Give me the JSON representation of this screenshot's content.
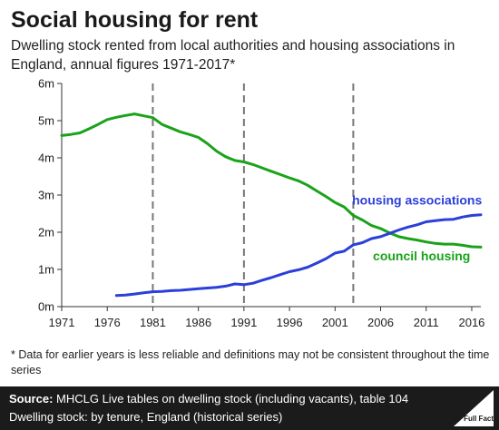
{
  "header": {
    "title": "Social housing for rent",
    "subtitle": "Dwelling stock rented from local authorities and housing associations in England, annual figures 1971-2017*"
  },
  "footnote": "* Data for earlier years is less reliable and definitions may not be consistent throughout the time series",
  "footer": {
    "source_label": "Source:",
    "source_text": " MHCLG Live tables on dwelling stock (including vacants), table 104",
    "line2": "Dwelling stock: by tenure, England (historical series)",
    "logo_text": "Full Fact"
  },
  "chart_data": {
    "type": "line",
    "xlim": [
      1971,
      2017
    ],
    "ylim": [
      0,
      6
    ],
    "x_ticks": [
      "1971",
      "1976",
      "1981",
      "1986",
      "1991",
      "1996",
      "2001",
      "2006",
      "2011",
      "2016"
    ],
    "x_tick_values": [
      1971,
      1976,
      1981,
      1986,
      1991,
      1996,
      2001,
      2006,
      2011,
      2016
    ],
    "y_ticks": [
      "0m",
      "1m",
      "2m",
      "3m",
      "4m",
      "5m",
      "6m"
    ],
    "y_tick_values": [
      0,
      1,
      2,
      3,
      4,
      5,
      6
    ],
    "reference_lines_x": [
      1981,
      1991,
      2003
    ],
    "grid": false,
    "series": [
      {
        "name": "council housing",
        "color": "#1aa31a",
        "points": [
          [
            1971,
            4.6
          ],
          [
            1972,
            4.63
          ],
          [
            1973,
            4.67
          ],
          [
            1974,
            4.78
          ],
          [
            1975,
            4.9
          ],
          [
            1976,
            5.03
          ],
          [
            1977,
            5.09
          ],
          [
            1978,
            5.14
          ],
          [
            1979,
            5.18
          ],
          [
            1980,
            5.13
          ],
          [
            1981,
            5.08
          ],
          [
            1982,
            4.9
          ],
          [
            1983,
            4.8
          ],
          [
            1984,
            4.7
          ],
          [
            1985,
            4.63
          ],
          [
            1986,
            4.55
          ],
          [
            1987,
            4.38
          ],
          [
            1988,
            4.18
          ],
          [
            1989,
            4.03
          ],
          [
            1990,
            3.93
          ],
          [
            1991,
            3.89
          ],
          [
            1992,
            3.82
          ],
          [
            1993,
            3.73
          ],
          [
            1994,
            3.64
          ],
          [
            1995,
            3.55
          ],
          [
            1996,
            3.46
          ],
          [
            1997,
            3.38
          ],
          [
            1998,
            3.26
          ],
          [
            1999,
            3.11
          ],
          [
            2000,
            2.96
          ],
          [
            2001,
            2.8
          ],
          [
            2002,
            2.68
          ],
          [
            2003,
            2.45
          ],
          [
            2004,
            2.33
          ],
          [
            2005,
            2.18
          ],
          [
            2006,
            2.1
          ],
          [
            2007,
            1.98
          ],
          [
            2008,
            1.88
          ],
          [
            2009,
            1.83
          ],
          [
            2010,
            1.79
          ],
          [
            2011,
            1.74
          ],
          [
            2012,
            1.7
          ],
          [
            2013,
            1.68
          ],
          [
            2014,
            1.68
          ],
          [
            2015,
            1.65
          ],
          [
            2016,
            1.61
          ],
          [
            2017,
            1.6
          ]
        ],
        "label": "council housing"
      },
      {
        "name": "housing associations",
        "color": "#2b3fd9",
        "points": [
          [
            1977,
            0.3
          ],
          [
            1978,
            0.31
          ],
          [
            1979,
            0.34
          ],
          [
            1980,
            0.37
          ],
          [
            1981,
            0.4
          ],
          [
            1982,
            0.41
          ],
          [
            1983,
            0.43
          ],
          [
            1984,
            0.44
          ],
          [
            1985,
            0.46
          ],
          [
            1986,
            0.48
          ],
          [
            1987,
            0.5
          ],
          [
            1988,
            0.52
          ],
          [
            1989,
            0.55
          ],
          [
            1990,
            0.61
          ],
          [
            1991,
            0.59
          ],
          [
            1992,
            0.63
          ],
          [
            1993,
            0.71
          ],
          [
            1994,
            0.78
          ],
          [
            1995,
            0.86
          ],
          [
            1996,
            0.94
          ],
          [
            1997,
            0.99
          ],
          [
            1998,
            1.06
          ],
          [
            1999,
            1.17
          ],
          [
            2000,
            1.29
          ],
          [
            2001,
            1.44
          ],
          [
            2002,
            1.49
          ],
          [
            2003,
            1.66
          ],
          [
            2004,
            1.72
          ],
          [
            2005,
            1.83
          ],
          [
            2006,
            1.88
          ],
          [
            2007,
            1.97
          ],
          [
            2008,
            2.06
          ],
          [
            2009,
            2.14
          ],
          [
            2010,
            2.2
          ],
          [
            2011,
            2.28
          ],
          [
            2012,
            2.31
          ],
          [
            2013,
            2.34
          ],
          [
            2014,
            2.35
          ],
          [
            2015,
            2.41
          ],
          [
            2016,
            2.45
          ],
          [
            2017,
            2.47
          ]
        ],
        "label": "housing associations"
      }
    ]
  }
}
